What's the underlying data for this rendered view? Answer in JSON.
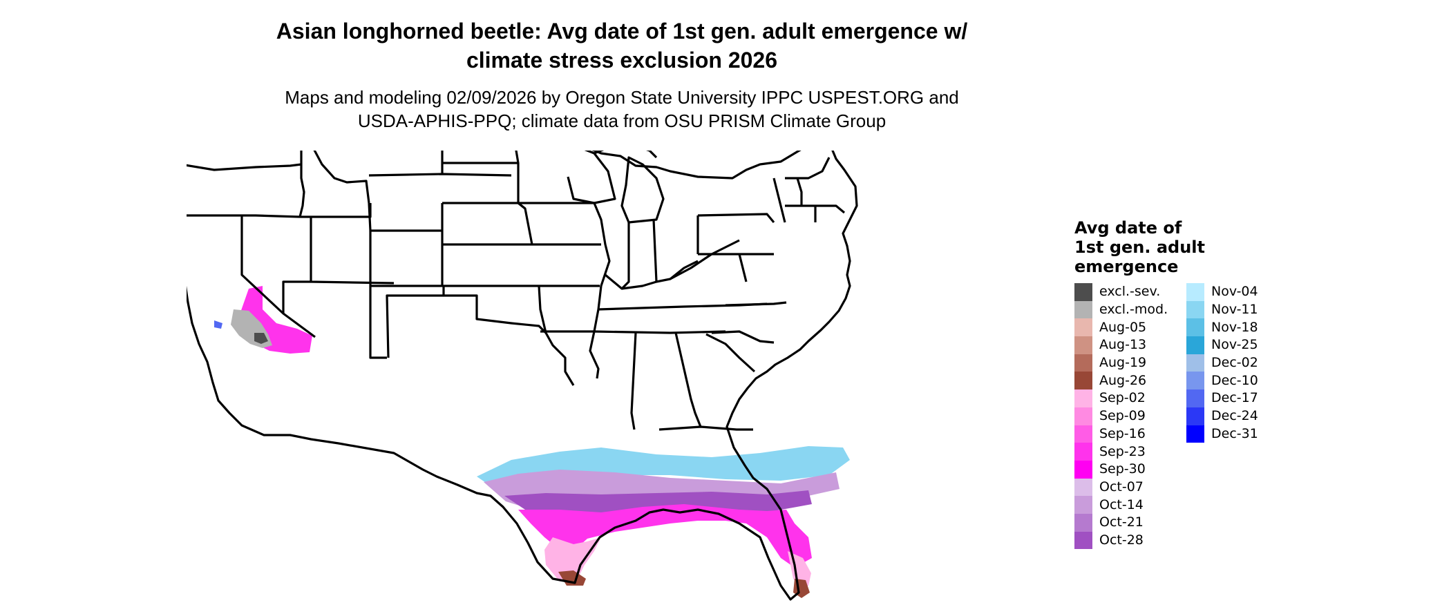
{
  "header": {
    "title_line1": "Asian longhorned beetle: Avg date of 1st gen. adult emergence w/",
    "title_line2": "climate stress exclusion 2026",
    "subtitle_line1": "Maps and modeling 02/09/2026 by Oregon State University IPPC USPEST.ORG and",
    "subtitle_line2": "USDA-APHIS-PPQ; climate data from OSU PRISM Climate Group"
  },
  "map": {
    "region": "contiguous-united-states",
    "state_borders_color": "#000000",
    "background_color": "#ffffff"
  },
  "legend": {
    "title_line1": "Avg date of",
    "title_line2": "1st gen. adult",
    "title_line3": "emergence",
    "column1": [
      {
        "label": "excl.-sev.",
        "color": "#4d4d4d"
      },
      {
        "label": "excl.-mod.",
        "color": "#b3b3b3"
      },
      {
        "label": "Aug-05",
        "color": "#e8b7ae"
      },
      {
        "label": "Aug-13",
        "color": "#cf9283"
      },
      {
        "label": "Aug-19",
        "color": "#b46b5b"
      },
      {
        "label": "Aug-26",
        "color": "#984736"
      },
      {
        "label": "Sep-02",
        "color": "#ffb3e6"
      },
      {
        "label": "Sep-09",
        "color": "#ff8ae2"
      },
      {
        "label": "Sep-16",
        "color": "#ff5ce6"
      },
      {
        "label": "Sep-23",
        "color": "#ff33ec"
      },
      {
        "label": "Sep-30",
        "color": "#ff00f2"
      },
      {
        "label": "Oct-07",
        "color": "#dcbde9"
      },
      {
        "label": "Oct-14",
        "color": "#c99cdb"
      },
      {
        "label": "Oct-21",
        "color": "#b57acf"
      },
      {
        "label": "Oct-28",
        "color": "#a050c2"
      }
    ],
    "column2": [
      {
        "label": "Nov-04",
        "color": "#b7ebff"
      },
      {
        "label": "Nov-11",
        "color": "#8ad6f2"
      },
      {
        "label": "Nov-18",
        "color": "#5cc0e6"
      },
      {
        "label": "Nov-25",
        "color": "#2aa6d9"
      },
      {
        "label": "Dec-02",
        "color": "#9fbfe8"
      },
      {
        "label": "Dec-10",
        "color": "#7896ee"
      },
      {
        "label": "Dec-17",
        "color": "#5268f2"
      },
      {
        "label": "Dec-24",
        "color": "#2b38f6"
      },
      {
        "label": "Dec-31",
        "color": "#0000ff"
      }
    ]
  }
}
